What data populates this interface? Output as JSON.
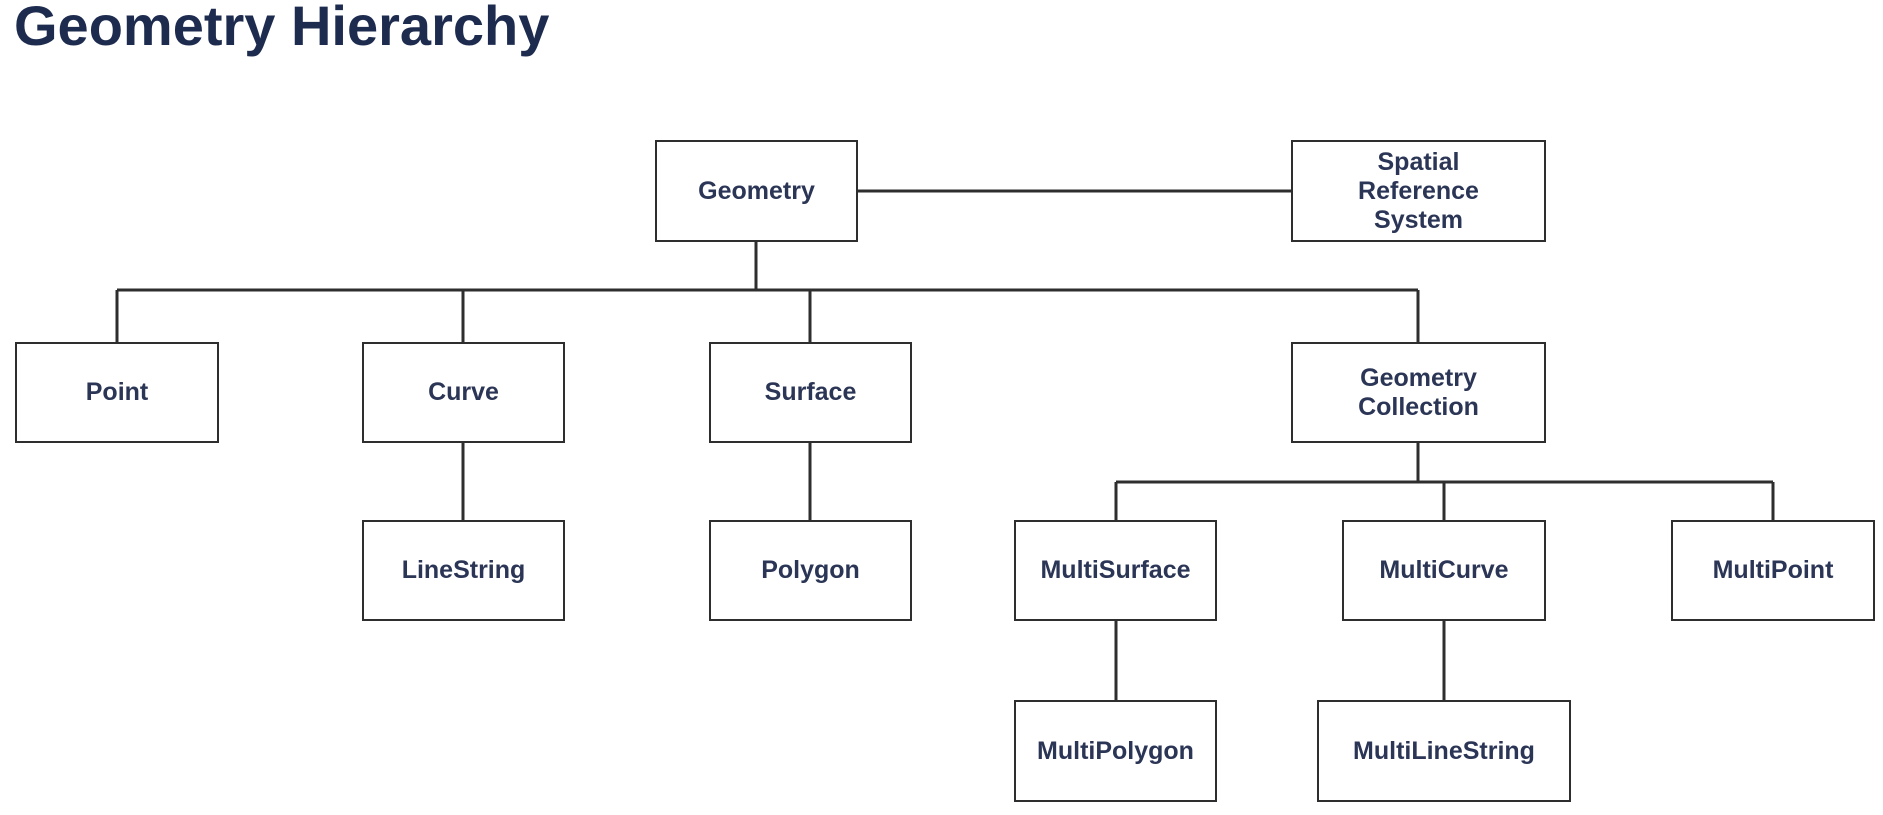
{
  "title": "Geometry Hierarchy",
  "nodes": {
    "geometry": "Geometry",
    "spatial_reference_system": "Spatial\nReference\nSystem",
    "point": "Point",
    "curve": "Curve",
    "surface": "Surface",
    "geometry_collection": "Geometry\nCollection",
    "linestring": "LineString",
    "polygon": "Polygon",
    "multisurface": "MultiSurface",
    "multicurve": "MultiCurve",
    "multipoint": "MultiPoint",
    "multipolygon": "MultiPolygon",
    "multilinestring": "MultiLineString"
  },
  "edges": [
    [
      "geometry",
      "spatial_reference_system"
    ],
    [
      "geometry",
      "point"
    ],
    [
      "geometry",
      "curve"
    ],
    [
      "geometry",
      "surface"
    ],
    [
      "geometry",
      "geometry_collection"
    ],
    [
      "curve",
      "linestring"
    ],
    [
      "surface",
      "polygon"
    ],
    [
      "geometry_collection",
      "multisurface"
    ],
    [
      "geometry_collection",
      "multicurve"
    ],
    [
      "geometry_collection",
      "multipoint"
    ],
    [
      "multisurface",
      "multipolygon"
    ],
    [
      "multicurve",
      "multilinestring"
    ]
  ]
}
